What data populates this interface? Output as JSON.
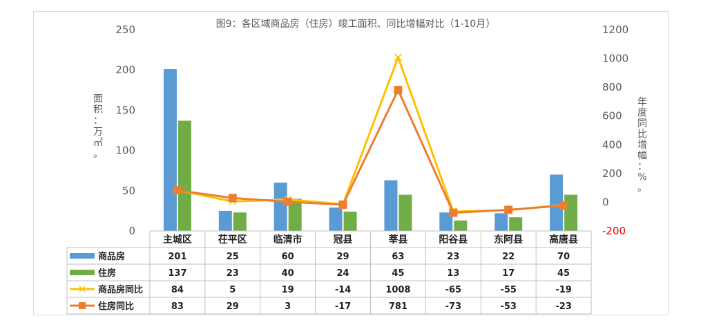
{
  "chart_data": {
    "type": "bar",
    "title": "图9：各区域商品房（住房）竣工面积、同比增幅对比（1-10月）",
    "categories": [
      "主城区",
      "茌平区",
      "临清市",
      "冠县",
      "莘县",
      "阳谷县",
      "东阿县",
      "高唐县"
    ],
    "y_left": {
      "label": "面积：万㎡。",
      "min": 0,
      "max": 250,
      "ticks": [
        0,
        50,
        100,
        150,
        200,
        250
      ]
    },
    "y_right": {
      "label": "年度同比增幅：%。",
      "min": -200,
      "max": 1200,
      "ticks": [
        -200,
        0,
        200,
        400,
        600,
        800,
        1000,
        1200
      ]
    },
    "series": [
      {
        "name": "商品房",
        "type": "bar",
        "axis": "left",
        "color": "#5b9bd5",
        "values": [
          201,
          25,
          60,
          29,
          63,
          23,
          22,
          70
        ]
      },
      {
        "name": "住房",
        "type": "bar",
        "axis": "left",
        "color": "#70ad47",
        "values": [
          137,
          23,
          40,
          24,
          45,
          13,
          17,
          45
        ]
      },
      {
        "name": "商品房同比",
        "type": "line",
        "axis": "right",
        "color": "#ffc000",
        "marker": "x",
        "values": [
          84,
          5,
          19,
          -14,
          1008,
          -65,
          -55,
          -19
        ]
      },
      {
        "name": "住房同比",
        "type": "line",
        "axis": "right",
        "color": "#ed7d31",
        "marker": "square",
        "values": [
          83,
          29,
          3,
          -17,
          781,
          -73,
          -53,
          -23
        ]
      }
    ],
    "grid": false,
    "legend": "data-table"
  }
}
